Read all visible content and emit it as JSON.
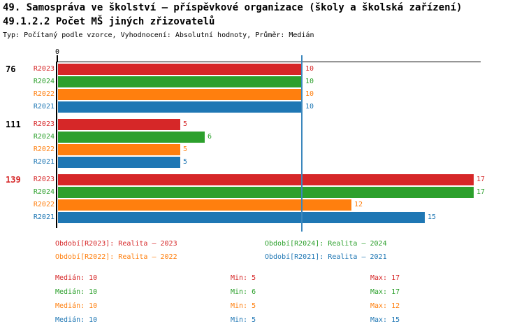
{
  "header": {
    "title_line1": "49. Samospráva ve školství – příspěvkové organizace (školy a školská zařízení)",
    "title_line2": "49.1.2.2 Počet MŠ jiných zřizovatelů",
    "subtitle": "Typ: Počítaný podle vzorce, Vyhodnocení: Absolutní hodnoty, Průměr: Medián"
  },
  "colors": {
    "R2023": "#d62728",
    "R2024": "#2ca02c",
    "R2022": "#ff7f0e",
    "R2021": "#1f77b4",
    "median_line": "#3b87bd",
    "axis": "#000000"
  },
  "chart_data": {
    "type": "bar",
    "orientation": "horizontal",
    "title": "49.1.2.2 Počet MŠ jiných zřizovatelů",
    "xlim": [
      0,
      17.3
    ],
    "grid": false,
    "x_axis": {
      "origin_tick_label": "0",
      "median_line_value": 10
    },
    "series_order": [
      "R2023",
      "R2024",
      "R2022",
      "R2021"
    ],
    "categories": [
      "76",
      "111",
      "139"
    ],
    "groups": [
      {
        "label": "76",
        "label_color": "#000000",
        "bars": [
          {
            "series": "R2023",
            "value": 10
          },
          {
            "series": "R2024",
            "value": 10
          },
          {
            "series": "R2022",
            "value": 10
          },
          {
            "series": "R2021",
            "value": 10
          }
        ]
      },
      {
        "label": "111",
        "label_color": "#000000",
        "bars": [
          {
            "series": "R2023",
            "value": 5
          },
          {
            "series": "R2024",
            "value": 6
          },
          {
            "series": "R2022",
            "value": 5
          },
          {
            "series": "R2021",
            "value": 5
          }
        ]
      },
      {
        "label": "139",
        "label_color": "#d62728",
        "bars": [
          {
            "series": "R2023",
            "value": 17
          },
          {
            "series": "R2024",
            "value": 17
          },
          {
            "series": "R2022",
            "value": 12
          },
          {
            "series": "R2021",
            "value": 15
          }
        ]
      }
    ]
  },
  "legend": {
    "items": [
      {
        "label": "Období[R2023]: Realita – 2023",
        "color": "#d62728"
      },
      {
        "label": "Období[R2024]: Realita – 2024",
        "color": "#2ca02c"
      },
      {
        "label": "Období[R2022]: Realita – 2022",
        "color": "#ff7f0e"
      },
      {
        "label": "Období[R2021]: Realita – 2021",
        "color": "#1f77b4"
      }
    ]
  },
  "stats": {
    "rows": [
      {
        "series": "R2023",
        "color": "#d62728",
        "median": "Medián: 10",
        "min": "Min: 5",
        "max": "Max: 17"
      },
      {
        "series": "R2024",
        "color": "#2ca02c",
        "median": "Medián: 10",
        "min": "Min: 6",
        "max": "Max: 17"
      },
      {
        "series": "R2022",
        "color": "#ff7f0e",
        "median": "Medián: 10",
        "min": "Min: 5",
        "max": "Max: 12"
      },
      {
        "series": "R2021",
        "color": "#1f77b4",
        "median": "Medián: 10",
        "min": "Min: 5",
        "max": "Max: 15"
      }
    ]
  }
}
